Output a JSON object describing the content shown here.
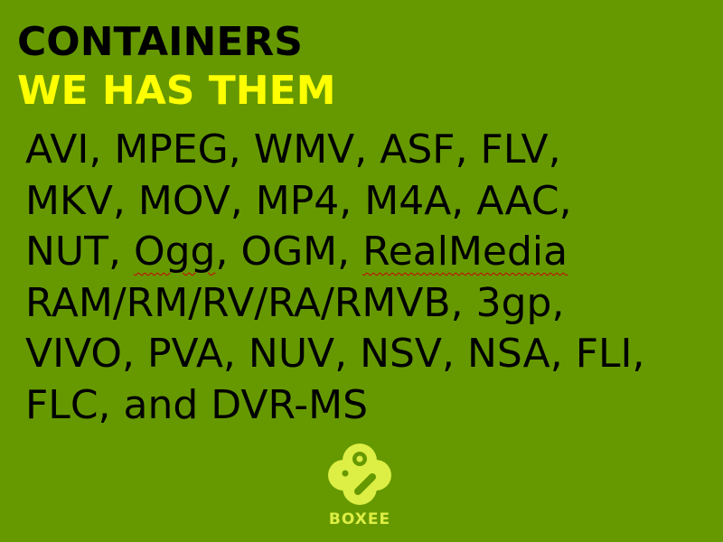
{
  "slide": {
    "title": "CONTAINERS",
    "subtitle": "WE HAS THEM",
    "body_lines": [
      {
        "parts": [
          {
            "text": "AVI, MPEG, WMV, ASF, FLV,"
          }
        ]
      },
      {
        "parts": [
          {
            "text": "MKV, MOV, MP4, M4A, AAC,"
          }
        ]
      },
      {
        "parts": [
          {
            "text": "NUT, "
          },
          {
            "text": "Ogg",
            "spellcheck": true
          },
          {
            "text": ", OGM, "
          },
          {
            "text": "RealMedia",
            "spellcheck": true
          }
        ]
      },
      {
        "parts": [
          {
            "text": "RAM/RM/RV/RA/RMVB, 3gp,"
          }
        ]
      },
      {
        "parts": [
          {
            "text": "VIVO, PVA, NUV, NSV, NSA, FLI,"
          }
        ]
      },
      {
        "parts": [
          {
            "text": "FLC, and DVR-MS"
          }
        ]
      }
    ],
    "logo": {
      "icon": "boxee-logo-icon",
      "text": "BOXEE"
    },
    "colors": {
      "background": "#669900",
      "title": "#000000",
      "subtitle": "#ffff00",
      "logo": "#ddee44",
      "spellcheck_underline": "#cc0000"
    }
  }
}
